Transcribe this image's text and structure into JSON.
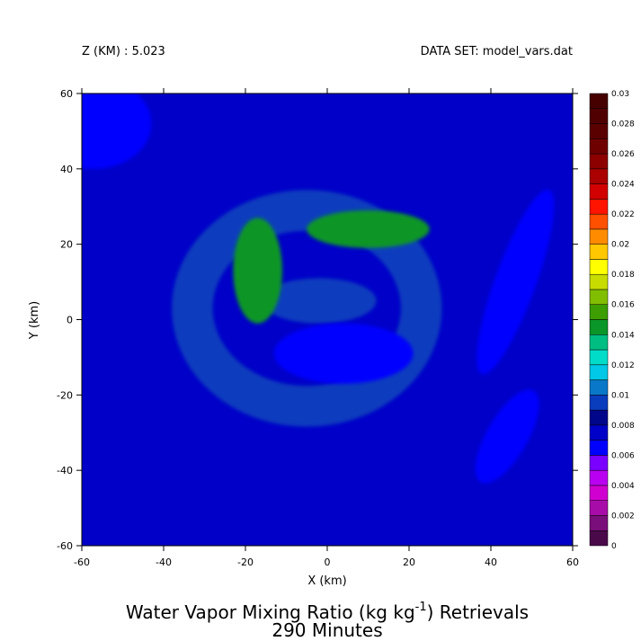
{
  "header": {
    "z_label": "Z (KM) : 5.023",
    "dataset_label": "DATA SET: model_vars.dat"
  },
  "chart_data": {
    "type": "heatmap",
    "title": "Water Vapor Mixing Ratio (kg kg",
    "title_superscript": "-1",
    "title_suffix": ") Retrievals",
    "subtitle": "290 Minutes",
    "xlabel": "X (km)",
    "ylabel": "Y (km)",
    "xlim": [
      -60,
      60
    ],
    "ylim": [
      -60,
      60
    ],
    "x_ticks": [
      -60,
      -40,
      -20,
      0,
      20,
      40,
      60
    ],
    "y_ticks": [
      -60,
      -40,
      -20,
      0,
      20,
      40,
      60
    ],
    "x_tick_labels": [
      "-60",
      "-40",
      "-20",
      "0",
      "20",
      "40",
      "60"
    ],
    "y_tick_labels": [
      "-60",
      "-40",
      "-20",
      "0",
      "20",
      "40",
      "60"
    ],
    "colorbar": {
      "min": 0,
      "max": 0.03,
      "step": 0.002,
      "tick_labels": [
        "0",
        "0.002",
        "0.004",
        "0.006",
        "0.008",
        "0.01",
        "0.012",
        "0.014",
        "0.016",
        "0.018",
        "0.02",
        "0.022",
        "0.024",
        "0.026",
        "0.028",
        "0.03"
      ],
      "level_colors": [
        "#4a0a4a",
        "#7a0e7a",
        "#a80ca8",
        "#d000d0",
        "#b900f0",
        "#7a00ff",
        "#0000ff",
        "#0000c8",
        "#00068a",
        "#0a3cbe",
        "#0a78c8",
        "#00c8e6",
        "#00dcc8",
        "#00be82",
        "#0a9628",
        "#3c9e00",
        "#82be00",
        "#c8dc00",
        "#ffff00",
        "#ffc800",
        "#ff8c00",
        "#ff5000",
        "#ff1400",
        "#d20000",
        "#aa0000",
        "#8c0000",
        "#6e0000",
        "#5a0000",
        "#500000",
        "#460000"
      ]
    },
    "field_features": [
      {
        "feature": "background",
        "x": 0,
        "y": 0,
        "value": 0.0075
      },
      {
        "feature": "ring-core",
        "x": -5,
        "y": 3,
        "value": 0.0098
      },
      {
        "feature": "inner-ring",
        "x": -2,
        "y": 5,
        "value": 0.0092
      },
      {
        "feature": "dry-eye",
        "x": 4,
        "y": -9,
        "value": 0.0062
      },
      {
        "feature": "moist-band-west",
        "x": -17,
        "y": 13,
        "value": 0.0145
      },
      {
        "feature": "moist-band-north",
        "x": 10,
        "y": 24,
        "value": 0.0142
      },
      {
        "feature": "dry-corner-nw",
        "x": -57,
        "y": 52,
        "value": 0.0062
      },
      {
        "feature": "dry-streak-se",
        "x": 44,
        "y": -31,
        "value": 0.0062
      },
      {
        "feature": "dry-streak-e",
        "x": 46,
        "y": 10,
        "value": 0.0066
      }
    ]
  }
}
